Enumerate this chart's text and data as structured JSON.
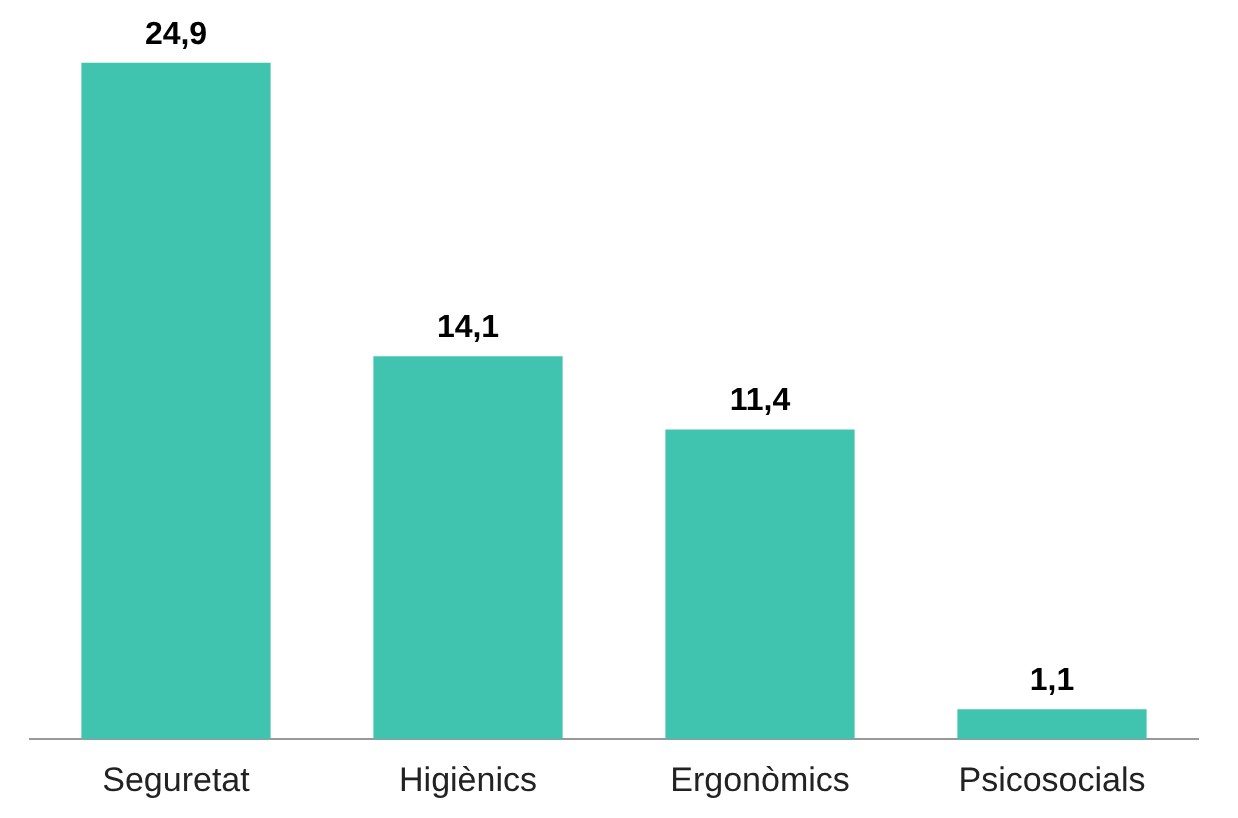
{
  "chart_data": {
    "type": "bar",
    "categories": [
      "Seguretat",
      "Higiènics",
      "Ergonòmics",
      "Psicosocials"
    ],
    "values": [
      24.9,
      14.1,
      11.4,
      1.1
    ],
    "color": "#40c4b0",
    "value_labels": [
      "24,9",
      "14,1",
      "11,4",
      "1,1"
    ],
    "grid": false,
    "legend": false
  }
}
